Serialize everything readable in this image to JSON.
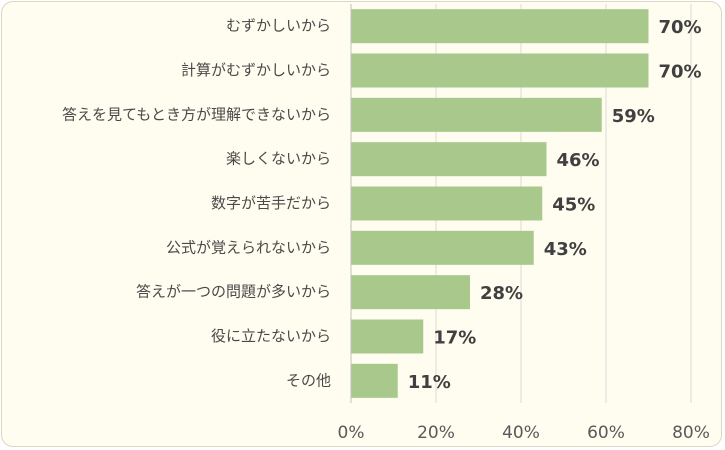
{
  "chart_data": {
    "type": "bar",
    "orientation": "horizontal",
    "categories": [
      "むずかしいから",
      "計算がむずかしいから",
      "答えを見てもとき方が理解できないから",
      "楽しくないから",
      "数字が苦手だから",
      "公式が覚えられないから",
      "答えが一つの問題が多いから",
      "役に立たないから",
      "その他"
    ],
    "values": [
      70,
      70,
      59,
      46,
      45,
      43,
      28,
      17,
      11
    ],
    "data_labels": [
      "70%",
      "70%",
      "59%",
      "46%",
      "45%",
      "43%",
      "28%",
      "17%",
      "11%"
    ],
    "xlim": [
      0,
      80
    ],
    "x_ticks": [
      0,
      20,
      40,
      60,
      80
    ],
    "x_tick_labels": [
      "0%",
      "20%",
      "40%",
      "60%",
      "80%"
    ],
    "grid": true,
    "legend": "none",
    "bar_color": "#a8c98b",
    "background_color": "#fffdf0"
  }
}
